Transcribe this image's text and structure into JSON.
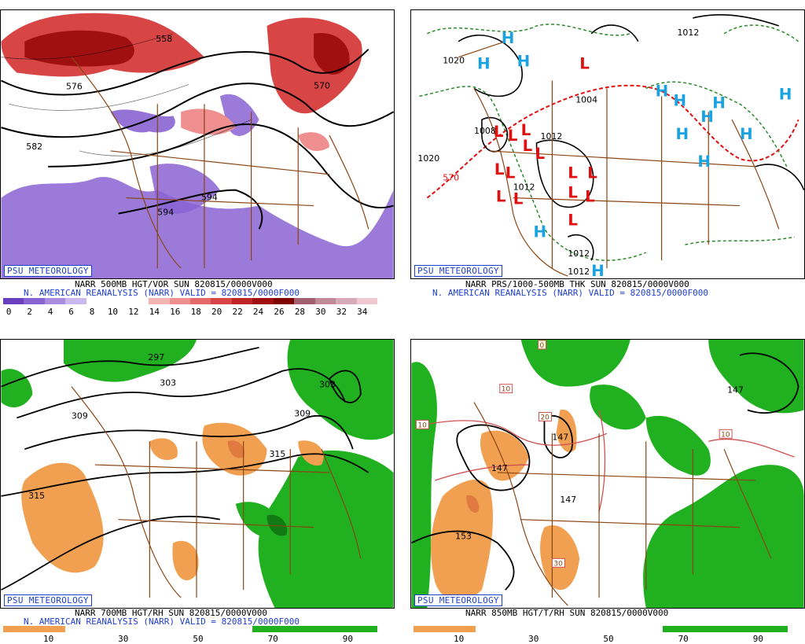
{
  "panels": [
    {
      "id": "tl",
      "psu_label": "PSU METEOROLOGY",
      "caption_line1": "NARR 500MB HGT/VOR SUN 820815/0000V000",
      "caption_line2": "N. AMERICAN REANALYSIS (NARR) VALID = 820815/0000F000",
      "contour_labels": [
        "558",
        "570",
        "582",
        "594",
        "594",
        "576"
      ],
      "colorbar": {
        "ticks": [
          "0",
          "2",
          "4",
          "6",
          "8",
          "10",
          "12",
          "14",
          "16",
          "18",
          "20",
          "22",
          "24",
          "26",
          "28",
          "30",
          "32",
          "34"
        ],
        "colors": [
          "#6a3fbf",
          "#8a63d2",
          "#a98be0",
          "#cbb8ef",
          "#ffffff",
          "#ffffff",
          "#ffffff",
          "#f4b4b4",
          "#ef8f8f",
          "#e46a6a",
          "#d84545",
          "#c02525",
          "#a01010",
          "#800000",
          "#a06070",
          "#c08a98",
          "#d8aab8",
          "#f0c8d0"
        ]
      }
    },
    {
      "id": "tr",
      "psu_label": "PSU METEOROLOGY",
      "caption_line1": "NARR PRS/1000-500MB THK SUN 820815/0000V000",
      "caption_line2": "N. AMERICAN REANALYSIS (NARR) VALID = 820815/0000F000",
      "contour_labels": [
        "1012",
        "1020",
        "1004",
        "1008",
        "1012",
        "1012",
        "1020",
        "1012",
        "1012",
        "570"
      ],
      "highs": [
        "H",
        "H",
        "H",
        "H",
        "H",
        "H",
        "H",
        "H",
        "H",
        "H",
        "H",
        "H",
        "H"
      ],
      "lows": [
        "L",
        "L",
        "L",
        "L",
        "L",
        "L",
        "L",
        "L",
        "L",
        "L",
        "L",
        "L",
        "L",
        "L",
        "L"
      ]
    },
    {
      "id": "bl",
      "psu_label": "PSU METEOROLOGY",
      "caption_line1": "NARR 700MB HGT/RH SUN 820815/0000V000",
      "caption_line2": "N. AMERICAN REANALYSIS (NARR) VALID = 820815/0000F000",
      "contour_labels": [
        "297",
        "303",
        "303",
        "309",
        "309",
        "315",
        "315"
      ],
      "colorbar": {
        "ticks": [
          "10",
          "30",
          "50",
          "70",
          "90"
        ],
        "colors": [
          "#f0a050",
          "#ffffff",
          "#ffffff",
          "#ffffff",
          "#20b020",
          "#20b020"
        ]
      }
    },
    {
      "id": "br",
      "psu_label": "PSU METEOROLOGY",
      "caption_line1": "NARR 850MB HGT/T/RH SUN 820815/0000V000",
      "contour_labels": [
        "147",
        "147",
        "147",
        "147",
        "153"
      ],
      "temp_labels": [
        "0",
        "10",
        "10",
        "10",
        "20",
        "30"
      ],
      "colorbar": {
        "ticks": [
          "10",
          "30",
          "50",
          "70",
          "90"
        ],
        "colors": [
          "#f0a050",
          "#ffffff",
          "#ffffff",
          "#ffffff",
          "#20b020",
          "#20b020"
        ]
      }
    }
  ],
  "colors": {
    "border": "#000000",
    "psu_blue": "#1f3fd0",
    "state_lines": "#8b4513",
    "vort_low": "#8a63d2",
    "vort_high": "#c02525",
    "rh_dry": "#f0a050",
    "rh_moist": "#20b020",
    "high_symbol": "#1aa3e0",
    "low_symbol": "#e01010",
    "thickness_line": "#2a8a2a",
    "thickness_warm": "#e01010"
  }
}
